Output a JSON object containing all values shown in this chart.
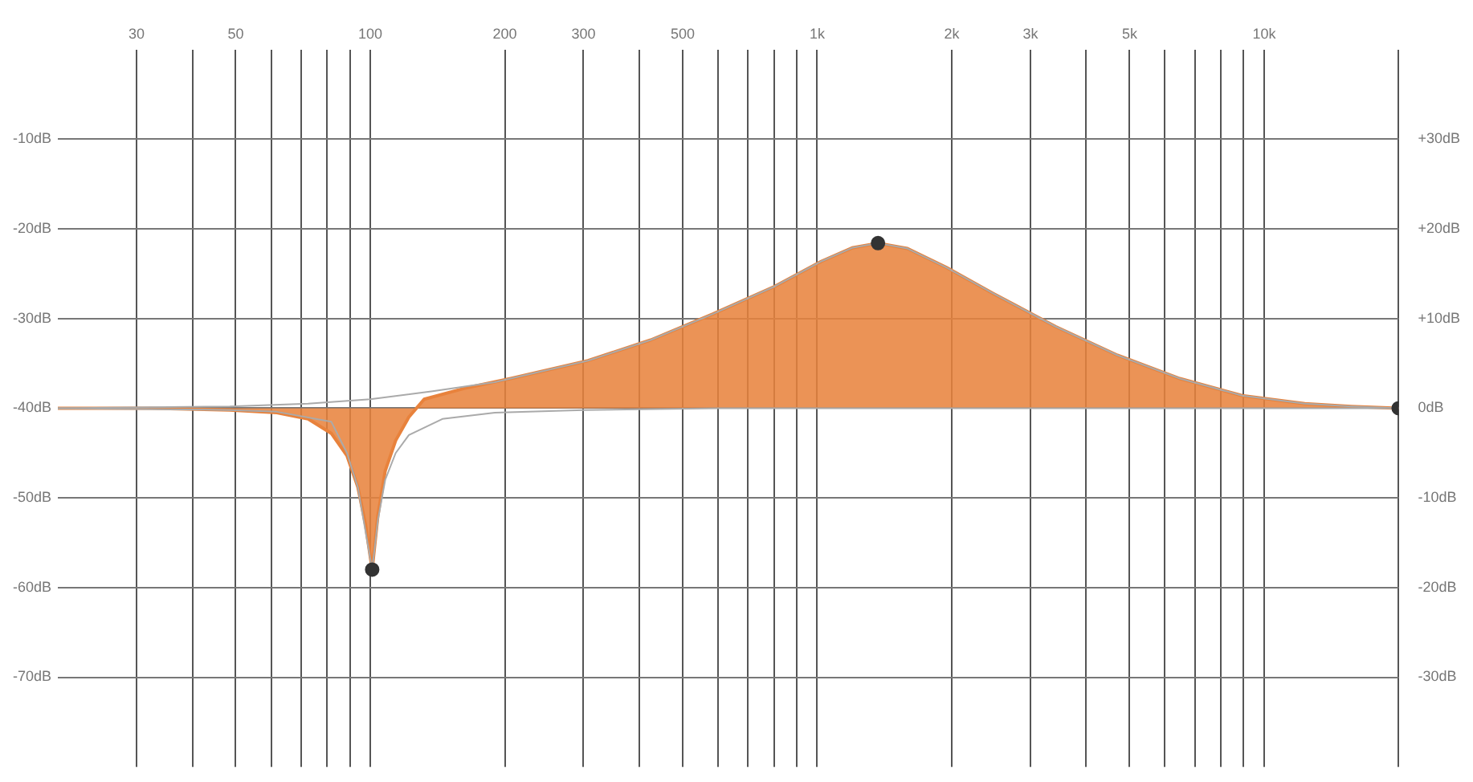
{
  "chart_data": {
    "type": "line",
    "log": "x",
    "grid": true,
    "legend": false,
    "xlim": [
      20,
      20000
    ],
    "xticks": [
      {
        "value": 30,
        "label": "30"
      },
      {
        "value": 40,
        "label": null
      },
      {
        "value": 50,
        "label": "50"
      },
      {
        "value": 60,
        "label": null
      },
      {
        "value": 70,
        "label": null
      },
      {
        "value": 80,
        "label": null
      },
      {
        "value": 90,
        "label": null
      },
      {
        "value": 100,
        "label": "100"
      },
      {
        "value": 200,
        "label": "200"
      },
      {
        "value": 300,
        "label": "300"
      },
      {
        "value": 400,
        "label": null
      },
      {
        "value": 500,
        "label": "500"
      },
      {
        "value": 600,
        "label": null
      },
      {
        "value": 700,
        "label": null
      },
      {
        "value": 800,
        "label": null
      },
      {
        "value": 900,
        "label": null
      },
      {
        "value": 1000,
        "label": "1k"
      },
      {
        "value": 2000,
        "label": "2k"
      },
      {
        "value": 3000,
        "label": "3k"
      },
      {
        "value": 4000,
        "label": null
      },
      {
        "value": 5000,
        "label": "5k"
      },
      {
        "value": 6000,
        "label": null
      },
      {
        "value": 7000,
        "label": null
      },
      {
        "value": 8000,
        "label": null
      },
      {
        "value": 9000,
        "label": null
      },
      {
        "value": 10000,
        "label": "10k"
      },
      {
        "value": 20000,
        "label": null
      }
    ],
    "ylim": [
      -80,
      0
    ],
    "yticks": [
      {
        "value": -10,
        "label": "-10dB"
      },
      {
        "value": -20,
        "label": "-20dB"
      },
      {
        "value": -30,
        "label": "-30dB"
      },
      {
        "value": -40,
        "label": "-40dB"
      },
      {
        "value": -50,
        "label": "-50dB"
      },
      {
        "value": -60,
        "label": "-60dB"
      },
      {
        "value": -70,
        "label": "-70dB"
      }
    ],
    "y2lim": [
      -40,
      40
    ],
    "y2ticks": [
      {
        "value": 30,
        "label": "+30dB"
      },
      {
        "value": 20,
        "label": "+20dB"
      },
      {
        "value": 10,
        "label": "+10dB"
      },
      {
        "value": 0,
        "label": "0dB"
      },
      {
        "value": -10,
        "label": "-10dB"
      },
      {
        "value": -20,
        "label": "-20dB"
      },
      {
        "value": -30,
        "label": "-30dB"
      }
    ],
    "series": [
      {
        "type": "area",
        "axis": "y2",
        "color": "#e8823c",
        "x": [
          20,
          32.5,
          48.5,
          61.8,
          72.6,
          81.8,
          88.7,
          93.8,
          97.6,
          101,
          104,
          108,
          114,
          122,
          132,
          162,
          206,
          307,
          424,
          584,
          805,
          1024,
          1202,
          1368,
          1592,
          1945,
          2475,
          3414,
          4700,
          6480,
          8930,
          12330,
          15670,
          20000
        ],
        "values": [
          0,
          0,
          -0.2,
          -0.5,
          -1.2,
          -2.8,
          -5.3,
          -8.8,
          -13,
          -18,
          -12,
          -7,
          -3.6,
          -1,
          1,
          2.2,
          3.3,
          5.3,
          7.6,
          10.5,
          13.6,
          16.4,
          17.9,
          18.4,
          17.8,
          15.7,
          12.8,
          9.1,
          5.9,
          3.3,
          1.4,
          0.5,
          0.2,
          0
        ]
      },
      {
        "type": "line",
        "axis": "y2",
        "color": "#aaaaaa",
        "x": [
          20,
          48.5,
          72.6,
          100,
          138,
          190,
          206,
          307,
          424,
          584,
          805,
          1024,
          1202,
          1368,
          1592,
          1945,
          2475,
          3414,
          4700,
          6480,
          8930,
          12330,
          15670,
          20000
        ],
        "values": [
          0,
          0.2,
          0.5,
          1,
          1.9,
          2.9,
          3.3,
          5.3,
          7.6,
          10.5,
          13.6,
          16.4,
          17.9,
          18.4,
          17.8,
          15.7,
          12.8,
          9.1,
          5.9,
          3.3,
          1.4,
          0.5,
          0.2,
          0
        ]
      },
      {
        "type": "line",
        "axis": "y2",
        "color": "#aaaaaa",
        "x": [
          20,
          48.5,
          61.8,
          81.8,
          88.7,
          93.8,
          101,
          104,
          108,
          114,
          122,
          145,
          190,
          300,
          600,
          20000
        ],
        "values": [
          0,
          -0.2,
          -0.4,
          -1.5,
          -5,
          -8.8,
          -18,
          -12.5,
          -8,
          -5,
          -3,
          -1.2,
          -0.5,
          -0.2,
          0,
          0
        ]
      },
      {
        "type": "scatter",
        "axis": "y2",
        "color": "#333333",
        "marker": "circle",
        "x": [
          101,
          1368,
          20000
        ],
        "values": [
          -18,
          18.4,
          0
        ]
      }
    ]
  }
}
